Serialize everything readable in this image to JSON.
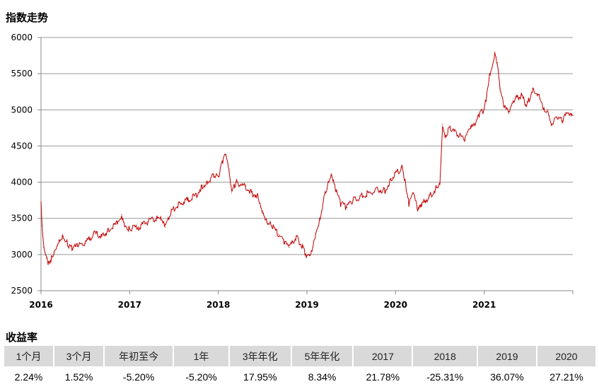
{
  "chart_data": {
    "type": "line",
    "title": "指数走势",
    "xlabel": "",
    "ylabel": "",
    "ylim": [
      2500,
      6000
    ],
    "xlim": [
      2016,
      2022
    ],
    "yticks": [
      "2500",
      "3000",
      "3500",
      "4000",
      "4500",
      "5000",
      "5500",
      "6000"
    ],
    "xticks": [
      "2016",
      "2017",
      "2018",
      "2019",
      "2020",
      "2021"
    ],
    "grid": true,
    "color": "#c00000",
    "x": [
      2016.0,
      2016.01,
      2016.03,
      2016.06,
      2016.08,
      2016.12,
      2016.15,
      2016.2,
      2016.25,
      2016.3,
      2016.35,
      2016.42,
      2016.5,
      2016.6,
      2016.68,
      2016.75,
      2016.85,
      2016.91,
      2016.95,
      2017.0,
      2017.1,
      2017.2,
      2017.3,
      2017.35,
      2017.4,
      2017.47,
      2017.55,
      2017.65,
      2017.75,
      2017.82,
      2017.88,
      2017.95,
      2018.0,
      2018.05,
      2018.08,
      2018.12,
      2018.15,
      2018.2,
      2018.3,
      2018.38,
      2018.45,
      2018.5,
      2018.55,
      2018.6,
      2018.68,
      2018.75,
      2018.8,
      2018.88,
      2018.95,
      2019.0,
      2019.05,
      2019.1,
      2019.15,
      2019.2,
      2019.28,
      2019.32,
      2019.38,
      2019.45,
      2019.52,
      2019.6,
      2019.7,
      2019.8,
      2019.88,
      2019.95,
      2020.03,
      2020.08,
      2020.12,
      2020.15,
      2020.2,
      2020.25,
      2020.3,
      2020.38,
      2020.45,
      2020.5,
      2020.53,
      2020.56,
      2020.62,
      2020.7,
      2020.78,
      2020.85,
      2020.9,
      2020.95,
      2021.0,
      2021.03,
      2021.06,
      2021.09,
      2021.12,
      2021.15,
      2021.18,
      2021.22,
      2021.28,
      2021.35,
      2021.42,
      2021.48,
      2021.55,
      2021.62,
      2021.68,
      2021.72,
      2021.76,
      2021.82,
      2021.88,
      2021.93,
      2021.96,
      2022.0
    ],
    "values": [
      3730,
      3400,
      3100,
      2950,
      2860,
      2950,
      3050,
      3200,
      3250,
      3150,
      3080,
      3120,
      3150,
      3300,
      3250,
      3320,
      3420,
      3550,
      3400,
      3350,
      3380,
      3450,
      3500,
      3480,
      3380,
      3600,
      3700,
      3750,
      3820,
      3950,
      4000,
      4100,
      4080,
      4300,
      4380,
      4150,
      3850,
      4000,
      3950,
      3850,
      3800,
      3600,
      3450,
      3400,
      3280,
      3150,
      3100,
      3250,
      3100,
      2980,
      3050,
      3300,
      3500,
      3850,
      4100,
      3900,
      3700,
      3650,
      3750,
      3800,
      3850,
      3900,
      3880,
      4050,
      4150,
      4200,
      3900,
      3700,
      3850,
      3600,
      3700,
      3800,
      3900,
      4000,
      4800,
      4650,
      4750,
      4650,
      4600,
      4750,
      4800,
      4950,
      5000,
      5200,
      5500,
      5600,
      5800,
      5650,
      5300,
      5050,
      4950,
      5150,
      5200,
      5050,
      5300,
      5200,
      5000,
      5000,
      4800,
      4900,
      4850,
      4950,
      4920,
      4920
    ]
  },
  "returns": {
    "title": "收益率",
    "headers": [
      "1个月",
      "3个月",
      "年初至今",
      "1年",
      "3年年化",
      "5年年化",
      "2017",
      "2018",
      "2019",
      "2020"
    ],
    "values": [
      "2.24%",
      "1.52%",
      "-5.20%",
      "-5.20%",
      "17.95%",
      "8.34%",
      "21.78%",
      "-25.31%",
      "36.07%",
      "27.21%"
    ]
  }
}
